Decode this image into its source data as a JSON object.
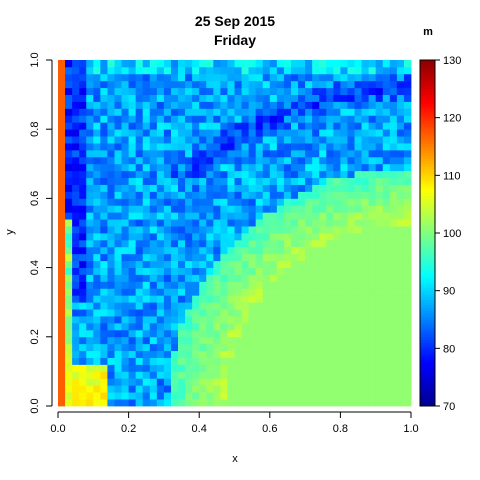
{
  "chart_data": {
    "type": "heatmap",
    "title": "25 Sep 2015",
    "subtitle": "Friday",
    "xlabel": "x",
    "ylabel": "y",
    "xlim": [
      0,
      1
    ],
    "ylim": [
      0,
      1
    ],
    "x_ticks": [
      "0.0",
      "0.2",
      "0.4",
      "0.6",
      "0.8",
      "1.0"
    ],
    "y_ticks": [
      "0.0",
      "0.2",
      "0.4",
      "0.6",
      "0.8",
      "1.0"
    ],
    "grid": false,
    "grid_size": 50,
    "colorbar": {
      "unit": "m",
      "range": [
        70,
        130
      ],
      "ticks": [
        "70",
        "80",
        "90",
        "100",
        "110",
        "120",
        "130"
      ],
      "palette": [
        "#00008b",
        "#0000ff",
        "#0080ff",
        "#00ffff",
        "#80ff80",
        "#ffff00",
        "#ff8000",
        "#ff0000",
        "#8b0000"
      ]
    },
    "regions": {
      "left_boundary_value": 117,
      "flat_region_value": 101,
      "flat_region_radius": 0.53,
      "band_peak_value": 108,
      "band_base_value": 96,
      "background_range": [
        82,
        92
      ]
    }
  }
}
